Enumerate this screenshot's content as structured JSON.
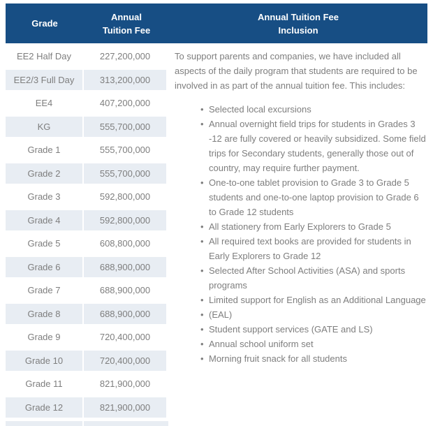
{
  "colors": {
    "header_bg": "#174e84",
    "header_text": "#ffffff",
    "row_stripe": "#e8edf3",
    "body_text": "#7e7e7e"
  },
  "table": {
    "header": {
      "grade": "Grade",
      "fee": [
        "Annual",
        "Tuition Fee"
      ],
      "inclusion": [
        "Annual Tuition Fee",
        "Inclusion"
      ]
    },
    "rows": [
      {
        "grade": "EE2 Half Day",
        "fee": "227,200,000"
      },
      {
        "grade": "EE2/3 Full Day",
        "fee": "313,200,000"
      },
      {
        "grade": "EE4",
        "fee": "407,200,000"
      },
      {
        "grade": "KG",
        "fee": "555,700,000"
      },
      {
        "grade": "Grade 1",
        "fee": "555,700,000"
      },
      {
        "grade": "Grade 2",
        "fee": "555,700,000"
      },
      {
        "grade": "Grade 3",
        "fee": "592,800,000"
      },
      {
        "grade": "Grade 4",
        "fee": "592,800,000"
      },
      {
        "grade": "Grade 5",
        "fee": "608,800,000"
      },
      {
        "grade": "Grade 6",
        "fee": "688,900,000"
      },
      {
        "grade": "Grade 7",
        "fee": "688,900,000"
      },
      {
        "grade": "Grade 8",
        "fee": "688,900,000"
      },
      {
        "grade": "Grade 9",
        "fee": "720,400,000"
      },
      {
        "grade": "Grade 10",
        "fee": "720,400,000"
      },
      {
        "grade": "Grade 11",
        "fee": "821,900,000"
      },
      {
        "grade": "Grade 12",
        "fee": "821,900,000"
      }
    ]
  },
  "inclusion": {
    "intro": "To support parents and companies, we have included all aspects of the daily program that students are required to be involved in as part of the annual tuition fee. This includes:",
    "bullets": [
      "Selected local excursions",
      "Annual overnight field trips for students in Grades 3 -12 are fully covered or heavily subsidized.  Some field trips for Secondary students, generally those out of country, may require further payment.",
      "One-to-one tablet provision to Grade 3 to Grade 5 students and one-to-one laptop provision to Grade 6 to Grade 12 students",
      "All stationery from Early Explorers to Grade 5",
      "All required text books are provided for students in Early Explorers to Grade 12",
      "Selected After School Activities (ASA) and sports programs",
      "Limited support for English as an Additional Language",
      "(EAL)",
      "Student support services (GATE and LS)",
      "Annual school uniform set",
      "Morning fruit snack for all students"
    ]
  }
}
